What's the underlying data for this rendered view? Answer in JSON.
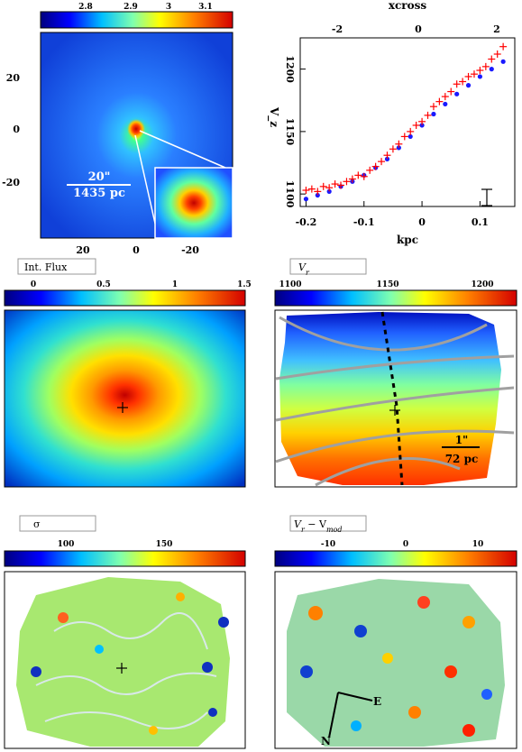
{
  "panel_a": {
    "colorbar_ticks": [
      "2.8",
      "2.9",
      "3",
      "3.1"
    ],
    "y_ticks": [
      "20",
      "0",
      "-20"
    ],
    "x_ticks": [
      "20",
      "0",
      "-20"
    ],
    "scale_arcsec": "20\"",
    "scale_pc": "1435 pc"
  },
  "panel_b": {
    "top_axis_label": "xcross",
    "top_ticks": [
      "-2",
      "0",
      "2"
    ],
    "y_label": "V_z",
    "y_ticks": [
      "1200",
      "1150",
      "1100"
    ],
    "x_label": "kpc",
    "x_ticks": [
      "-0.2",
      "-0.1",
      "0",
      "0.1"
    ]
  },
  "panel_flux": {
    "title": "Int. Flux",
    "colorbar_ticks": [
      "0",
      "0.5",
      "1",
      "1.5"
    ]
  },
  "panel_vr": {
    "title": "V",
    "title_sub": "r",
    "colorbar_ticks": [
      "1100",
      "1150",
      "1200"
    ],
    "scale_arcsec": "1\"",
    "scale_pc": "72 pc"
  },
  "panel_sigma": {
    "title": "σ",
    "colorbar_ticks": [
      "100",
      "150"
    ]
  },
  "panel_resid": {
    "title": "V",
    "title_sub": "r",
    "title_minus": " − V",
    "title_sub2": "mod",
    "colorbar_ticks": [
      "-10",
      "0",
      "10"
    ],
    "compass_n": "N",
    "compass_e": "E"
  },
  "colors": {
    "points_red": "#ff0000",
    "model_blue": "#1a1aff",
    "contour_gray": "#a0a0a0"
  },
  "chart_data": {
    "type": "scatter",
    "series": [
      {
        "x": [
          -0.2,
          -0.19,
          -0.18,
          -0.17,
          -0.16,
          -0.15,
          -0.14,
          -0.13,
          -0.12,
          -0.11,
          -0.1,
          -0.09,
          -0.08,
          -0.07,
          -0.06,
          -0.05,
          -0.04,
          -0.03,
          -0.02,
          -0.01,
          0,
          0.01,
          0.02,
          0.03,
          0.04,
          0.05,
          0.06,
          0.07,
          0.08,
          0.09,
          0.1,
          0.11,
          0.12,
          0.13,
          0.14
        ],
        "y": [
          1103,
          1104,
          1102,
          1106,
          1105,
          1108,
          1107,
          1110,
          1112,
          1115,
          1114,
          1119,
          1122,
          1126,
          1131,
          1136,
          1140,
          1146,
          1150,
          1155,
          1158,
          1163,
          1170,
          1174,
          1178,
          1182,
          1188,
          1190,
          1194,
          1196,
          1199,
          1202,
          1208,
          1212,
          1218
        ]
      },
      {
        "x": [
          -0.2,
          -0.18,
          -0.16,
          -0.14,
          -0.12,
          -0.1,
          -0.08,
          -0.06,
          -0.04,
          -0.02,
          0,
          0.02,
          0.04,
          0.06,
          0.08,
          0.1,
          0.12,
          0.14
        ],
        "y": [
          1096,
          1099,
          1102,
          1106,
          1110,
          1115,
          1121,
          1128,
          1137,
          1146,
          1155,
          1164,
          1172,
          1180,
          1187,
          1194,
          1200,
          1206
        ]
      }
    ],
    "xlabel": "kpc",
    "ylabel": "V_z",
    "xlim": [
      -0.21,
      0.16
    ],
    "ylim": [
      1090,
      1225
    ]
  }
}
